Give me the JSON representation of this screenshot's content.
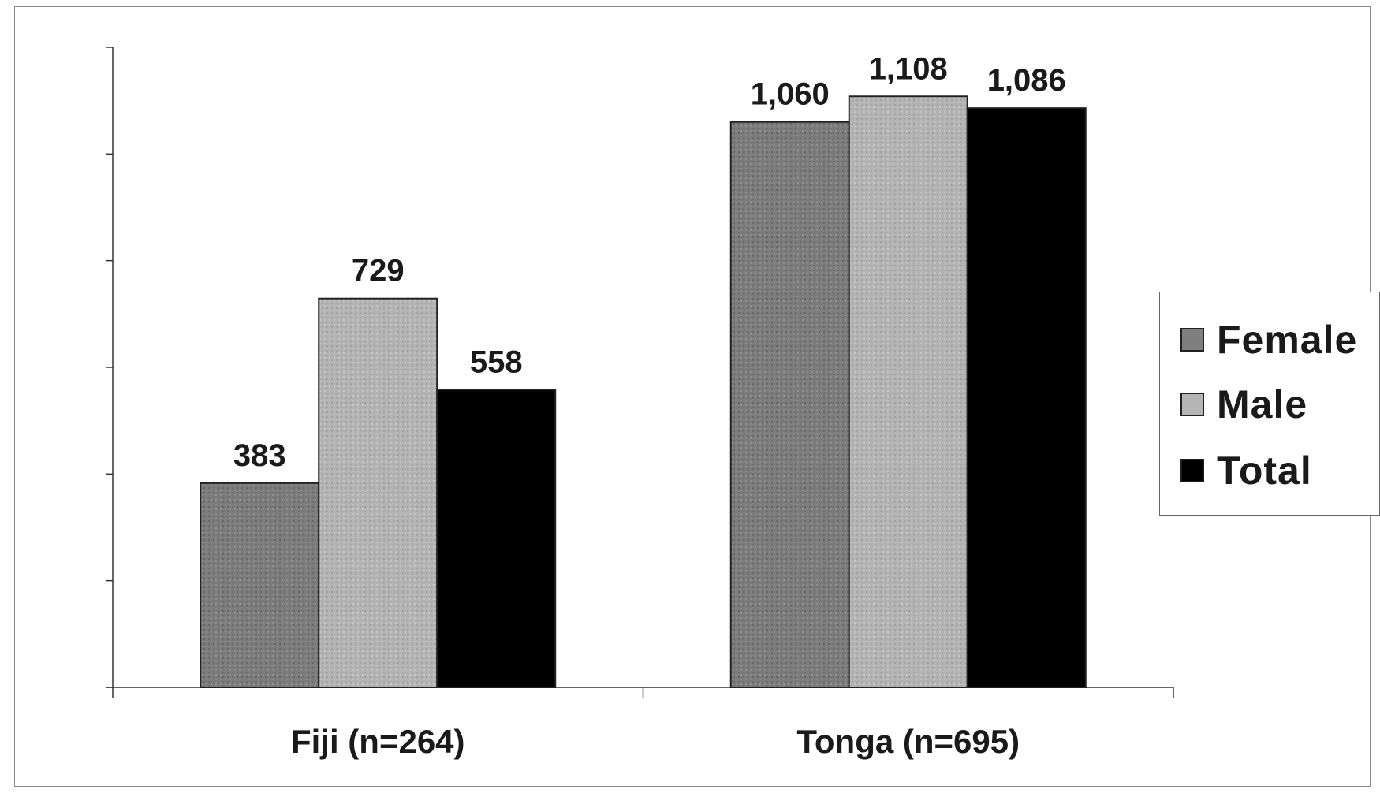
{
  "chart_data": {
    "type": "bar",
    "categories": [
      "Fiji (n=264)",
      "Tonga (n=695)"
    ],
    "series": [
      {
        "name": "Female",
        "values": [
          383,
          1060
        ],
        "labels": [
          "383",
          "1,060"
        ],
        "color": "#7f7f7f"
      },
      {
        "name": "Male",
        "values": [
          729,
          1108
        ],
        "labels": [
          "729",
          "1,108"
        ],
        "color": "#b5b5b5"
      },
      {
        "name": "Total",
        "values": [
          558,
          1086
        ],
        "labels": [
          "558",
          "1,086"
        ],
        "color": "#000000"
      }
    ],
    "ylim": [
      0,
      1200
    ],
    "y_ticks": [
      0,
      200,
      400,
      600,
      800,
      1000,
      1200
    ],
    "y_tick_labels_shown": false,
    "grid": false,
    "legend_position": "right"
  }
}
